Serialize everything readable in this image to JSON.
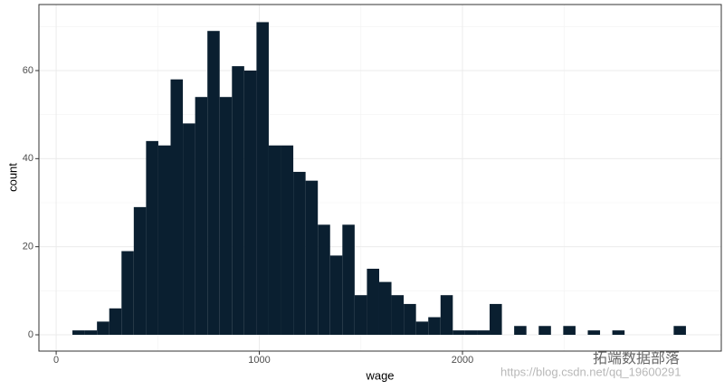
{
  "chart_data": {
    "type": "histogram",
    "x_label": "wage",
    "y_label": "count",
    "bins": [
      80,
      140.4,
      200.8,
      261.2,
      321.6,
      382,
      442.4,
      502.8,
      563.2,
      623.6,
      684,
      744.4,
      804.8,
      865.2,
      925.6,
      986,
      1046.4,
      1106.8,
      1167.2,
      1227.6,
      1288,
      1348.4,
      1408.8,
      1469.2,
      1529.6,
      1590,
      1650.4,
      1710.8,
      1771.2,
      1831.6,
      1892,
      1952.4,
      2012.8,
      2073.2,
      2133.6,
      2194,
      2254.4,
      2314.8,
      2375.2,
      2435.6,
      2496,
      2556.4,
      2616.8,
      2677.2,
      2737.6,
      2798,
      2858.4,
      2918.8,
      2979.2,
      3039.6,
      3100
    ],
    "counts": [
      1,
      1,
      3,
      6,
      19,
      29,
      44,
      43,
      58,
      48,
      54,
      69,
      54,
      61,
      60,
      71,
      43,
      43,
      37,
      35,
      25,
      18,
      25,
      9,
      15,
      12,
      9,
      7,
      3,
      4,
      9,
      1,
      1,
      1,
      7,
      0,
      2,
      0,
      2,
      0,
      2,
      0,
      1,
      0,
      1,
      0,
      0,
      0,
      0,
      2
    ],
    "color": "#0a1f30",
    "xlim": [
      -85,
      3274
    ],
    "ylim": [
      -3.7,
      75
    ],
    "xticks": [
      0,
      1000,
      2000
    ],
    "yticks": [
      0,
      20,
      40,
      60
    ],
    "x_minor_ticks": [
      500,
      1500,
      2500
    ],
    "y_minor_ticks": [
      10,
      30,
      50,
      70
    ],
    "grid": true,
    "annotations": [
      "拓端数据部落",
      "https://blog.csdn.net/qq_19600291"
    ]
  }
}
